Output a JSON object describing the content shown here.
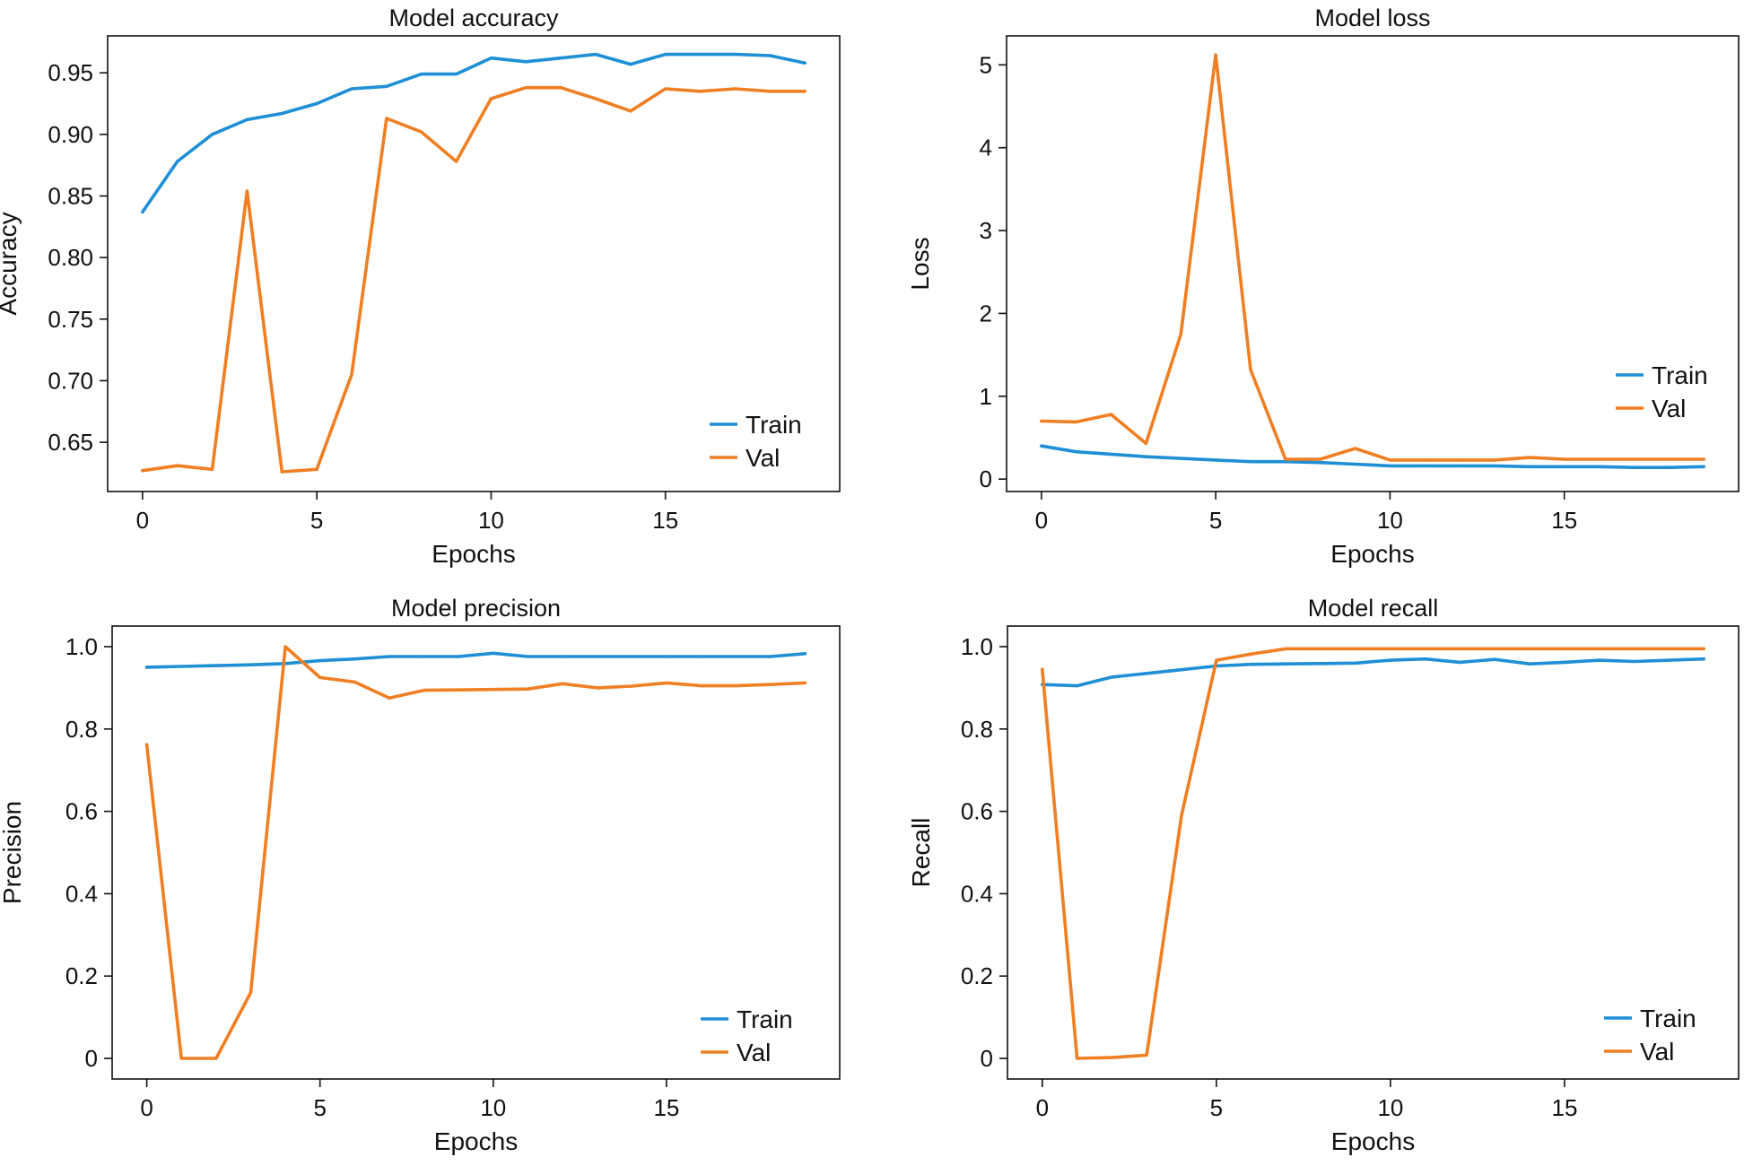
{
  "colors": {
    "train": "#1f8fd6",
    "val": "#f07f23",
    "axis": "#111111"
  },
  "chart_data": [
    {
      "type": "line",
      "title": "Model accuracy",
      "xlabel": "Epochs",
      "ylabel": "Accuracy",
      "xlim": [
        -1.0,
        20.0
      ],
      "ylim": [
        0.61,
        0.98
      ],
      "xticks": [
        0,
        5,
        10,
        15
      ],
      "xtick_labels": [
        "0",
        "5",
        "10",
        "15"
      ],
      "yticks": [
        0.65,
        0.7,
        0.75,
        0.8,
        0.85,
        0.9,
        0.95
      ],
      "ytick_labels": [
        "0.65",
        "0.70",
        "0.75",
        "0.80",
        "0.85",
        "0.90",
        "0.95"
      ],
      "legend": "bottom-right",
      "x": [
        0,
        1,
        2,
        3,
        4,
        5,
        6,
        7,
        8,
        9,
        10,
        11,
        12,
        13,
        14,
        15,
        16,
        17,
        18,
        19
      ],
      "series": [
        {
          "name": "Train",
          "values": [
            0.837,
            0.878,
            0.9,
            0.912,
            0.917,
            0.925,
            0.937,
            0.939,
            0.949,
            0.949,
            0.962,
            0.959,
            0.962,
            0.965,
            0.957,
            0.965,
            0.965,
            0.965,
            0.964,
            0.958
          ]
        },
        {
          "name": "Val",
          "values": [
            0.627,
            0.631,
            0.628,
            0.854,
            0.626,
            0.628,
            0.705,
            0.913,
            0.902,
            0.878,
            0.929,
            0.938,
            0.938,
            0.929,
            0.919,
            0.937,
            0.935,
            0.937,
            0.935,
            0.935
          ]
        }
      ]
    },
    {
      "type": "line",
      "title": "Model loss",
      "xlabel": "Epochs",
      "ylabel": "Loss",
      "xlim": [
        -1.0,
        20.0
      ],
      "ylim": [
        -0.15,
        5.35
      ],
      "xticks": [
        0,
        5,
        10,
        15
      ],
      "xtick_labels": [
        "0",
        "5",
        "10",
        "15"
      ],
      "yticks": [
        0,
        1,
        2,
        3,
        4,
        5
      ],
      "ytick_labels": [
        "0",
        "1",
        "2",
        "3",
        "4",
        "5"
      ],
      "legend": "right",
      "x": [
        0,
        1,
        2,
        3,
        4,
        5,
        6,
        7,
        8,
        9,
        10,
        11,
        12,
        13,
        14,
        15,
        16,
        17,
        18,
        19
      ],
      "series": [
        {
          "name": "Train",
          "values": [
            0.4,
            0.33,
            0.3,
            0.27,
            0.25,
            0.23,
            0.21,
            0.21,
            0.2,
            0.18,
            0.16,
            0.16,
            0.16,
            0.16,
            0.15,
            0.15,
            0.15,
            0.14,
            0.14,
            0.15
          ]
        },
        {
          "name": "Val",
          "values": [
            0.7,
            0.69,
            0.78,
            0.43,
            1.75,
            5.12,
            1.32,
            0.24,
            0.24,
            0.37,
            0.23,
            0.23,
            0.23,
            0.23,
            0.26,
            0.24,
            0.24,
            0.24,
            0.24,
            0.24
          ]
        }
      ]
    },
    {
      "type": "line",
      "title": "Model precision",
      "xlabel": "Epochs",
      "ylabel": "Precision",
      "xlim": [
        -1.0,
        20.0
      ],
      "ylim": [
        -0.05,
        1.05
      ],
      "xticks": [
        0,
        5,
        10,
        15
      ],
      "xtick_labels": [
        "0",
        "5",
        "10",
        "15"
      ],
      "yticks": [
        0,
        0.2,
        0.4,
        0.6,
        0.8,
        1.0
      ],
      "ytick_labels": [
        "0",
        "0.2",
        "0.4",
        "0.6",
        "0.8",
        "1.0"
      ],
      "legend": "bottom-right",
      "x": [
        0,
        1,
        2,
        3,
        4,
        5,
        6,
        7,
        8,
        9,
        10,
        11,
        12,
        13,
        14,
        15,
        16,
        17,
        18,
        19
      ],
      "series": [
        {
          "name": "Train",
          "values": [
            0.95,
            0.952,
            0.954,
            0.956,
            0.959,
            0.966,
            0.97,
            0.976,
            0.976,
            0.976,
            0.984,
            0.976,
            0.976,
            0.976,
            0.976,
            0.976,
            0.976,
            0.976,
            0.976,
            0.983
          ]
        },
        {
          "name": "Val",
          "values": [
            0.762,
            0.0,
            0.0,
            0.16,
            1.0,
            0.925,
            0.914,
            0.875,
            0.894,
            0.895,
            0.896,
            0.897,
            0.91,
            0.9,
            0.904,
            0.912,
            0.905,
            0.905,
            0.908,
            0.912
          ]
        }
      ]
    },
    {
      "type": "line",
      "title": "Model recall",
      "xlabel": "Epochs",
      "ylabel": "Recall",
      "xlim": [
        -1.0,
        20.0
      ],
      "ylim": [
        -0.05,
        1.05
      ],
      "xticks": [
        0,
        5,
        10,
        15
      ],
      "xtick_labels": [
        "0",
        "5",
        "10",
        "15"
      ],
      "yticks": [
        0,
        0.2,
        0.4,
        0.6,
        0.8,
        1.0
      ],
      "ytick_labels": [
        "0",
        "0.2",
        "0.4",
        "0.6",
        "0.8",
        "1.0"
      ],
      "legend": "bottom-right",
      "x": [
        0,
        1,
        2,
        3,
        4,
        5,
        6,
        7,
        8,
        9,
        10,
        11,
        12,
        13,
        14,
        15,
        16,
        17,
        18,
        19
      ],
      "series": [
        {
          "name": "Train",
          "values": [
            0.908,
            0.905,
            0.926,
            0.935,
            0.944,
            0.953,
            0.957,
            0.958,
            0.959,
            0.96,
            0.967,
            0.97,
            0.962,
            0.969,
            0.958,
            0.962,
            0.967,
            0.964,
            0.967,
            0.97
          ]
        },
        {
          "name": "Val",
          "values": [
            0.945,
            0.0,
            0.002,
            0.008,
            0.59,
            0.967,
            0.982,
            0.995,
            0.995,
            0.995,
            0.995,
            0.995,
            0.995,
            0.995,
            0.995,
            0.995,
            0.995,
            0.995,
            0.995,
            0.995
          ]
        }
      ]
    }
  ]
}
